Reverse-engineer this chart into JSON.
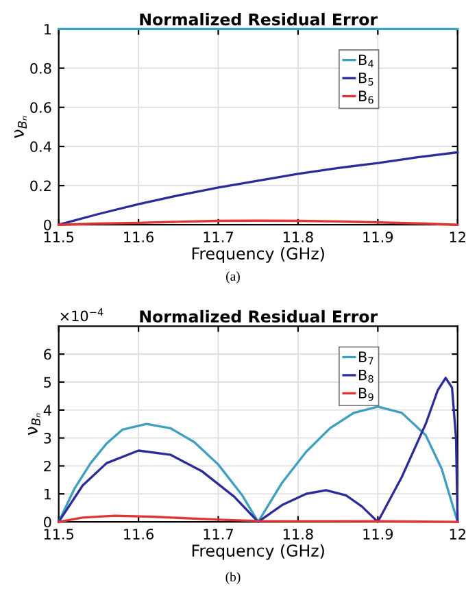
{
  "chart_data": [
    {
      "type": "line",
      "title": "Normalized Residual Error",
      "xlabel": "Frequency (GHz)",
      "ylabel": "ν$_{Bₙ}$",
      "xlim": [
        11.5,
        12
      ],
      "xticks": [
        11.5,
        11.6,
        11.7,
        11.8,
        11.9,
        12
      ],
      "ylim": [
        0,
        1
      ],
      "yticks": [
        0,
        0.2,
        0.4,
        0.6,
        0.8,
        1
      ],
      "grid": true,
      "legend": "top right",
      "annotations": [
        "(a)"
      ],
      "x": [
        11.5,
        11.55,
        11.6,
        11.65,
        11.7,
        11.75,
        11.8,
        11.85,
        11.9,
        11.95,
        12
      ],
      "series": [
        {
          "name": "B$_{4}$",
          "color": "#3f9fbf",
          "values": [
            1,
            1,
            1,
            1,
            1,
            1,
            1,
            1,
            1,
            1,
            1
          ]
        },
        {
          "name": "B$_{5}$",
          "color": "#2b2b9a",
          "values": [
            0,
            0.055,
            0.105,
            0.15,
            0.19,
            0.225,
            0.26,
            0.29,
            0.315,
            0.345,
            0.37
          ]
        },
        {
          "name": "B$_{6}$",
          "color": "#e03535",
          "values": [
            0,
            0.006,
            0.01,
            0.015,
            0.02,
            0.021,
            0.02,
            0.017,
            0.012,
            0.007,
            0
          ]
        }
      ]
    },
    {
      "type": "line",
      "title": "Normalized Residual Error",
      "xlabel": "Frequency (GHz)",
      "ylabel": "ν$_{Bₙ}$",
      "xlim": [
        11.5,
        12
      ],
      "xticks": [
        11.5,
        11.6,
        11.7,
        11.8,
        11.9,
        12
      ],
      "ylim": [
        0,
        7
      ],
      "yticks": [
        0,
        1,
        2,
        3,
        4,
        5,
        6
      ],
      "grid": true,
      "legend": "top right",
      "annotations": [
        "×10$^{−4}$",
        "(b)"
      ],
      "series": [
        {
          "name": "B$_{7}$",
          "color": "#3f9fbf",
          "x": [
            11.5,
            11.52,
            11.54,
            11.56,
            11.58,
            11.61,
            11.64,
            11.67,
            11.7,
            11.73,
            11.75,
            11.78,
            11.81,
            11.84,
            11.87,
            11.9,
            11.93,
            11.96,
            11.98,
            12
          ],
          "values": [
            0,
            1.2,
            2.1,
            2.8,
            3.3,
            3.5,
            3.35,
            2.85,
            2.05,
            0.95,
            0,
            1.4,
            2.5,
            3.35,
            3.9,
            4.12,
            3.9,
            3.1,
            1.9,
            0
          ]
        },
        {
          "name": "B$_{8}$",
          "color": "#2b2b9a",
          "x": [
            11.5,
            11.53,
            11.56,
            11.6,
            11.64,
            11.68,
            11.72,
            11.75,
            11.78,
            11.81,
            11.835,
            11.86,
            11.88,
            11.9,
            11.93,
            11.96,
            11.975,
            11.985,
            11.993,
            11.998,
            12
          ],
          "values": [
            0,
            1.3,
            2.1,
            2.55,
            2.4,
            1.8,
            0.9,
            0,
            0.6,
            1.0,
            1.13,
            0.95,
            0.55,
            0,
            1.6,
            3.5,
            4.7,
            5.15,
            4.8,
            3,
            0
          ]
        },
        {
          "name": "B$_{9}$",
          "color": "#e03535",
          "x": [
            11.5,
            11.53,
            11.57,
            11.62,
            11.7,
            11.75,
            11.9,
            12
          ],
          "values": [
            0,
            0.15,
            0.22,
            0.18,
            0.08,
            0.03,
            0.02,
            0
          ]
        }
      ]
    }
  ]
}
